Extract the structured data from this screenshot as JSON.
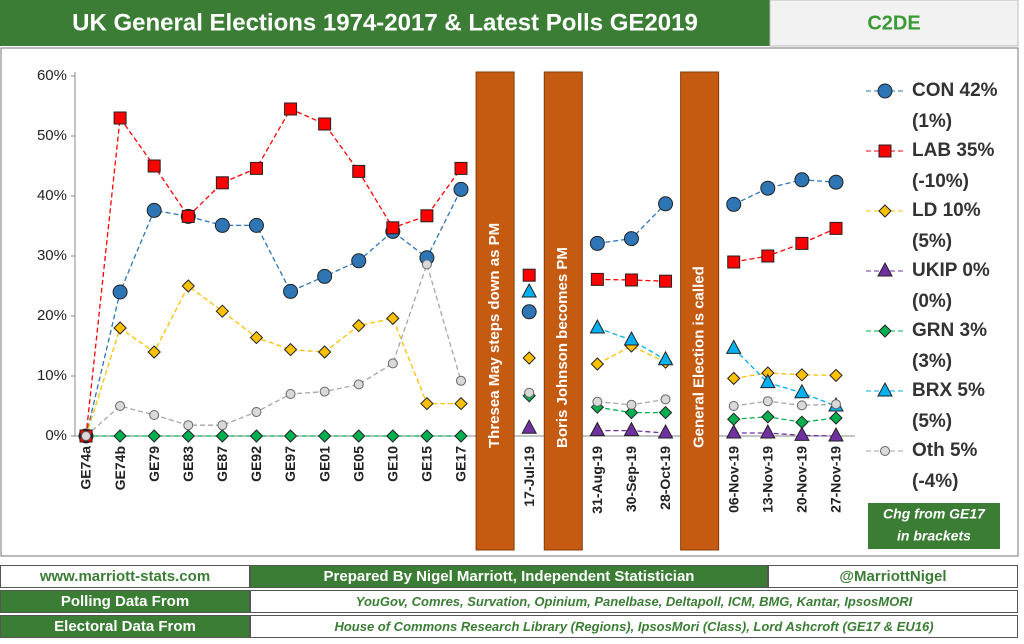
{
  "chart_data": {
    "type": "line",
    "title": "UK General Elections 1974-2017 & Latest Polls GE2019",
    "subtitle": "C2DE",
    "categories": [
      "GE74a",
      "GE74b",
      "GE79",
      "GE83",
      "GE87",
      "GE92",
      "GE97",
      "GE01",
      "GE05",
      "GE10",
      "GE15",
      "GE17",
      null,
      "17-Jul-19",
      null,
      "31-Aug-19",
      "30-Sep-19",
      "28-Oct-19",
      null,
      "06-Nov-19",
      "13-Nov-19",
      "20-Nov-19",
      "27-Nov-19"
    ],
    "annotations": [
      "Thresea May steps down as PM",
      "Boris Johnson becomes PM",
      "General Election is called"
    ],
    "annotation_color": "#c55a11",
    "ylim": [
      0,
      60
    ],
    "yticks": [
      {
        "value": 0,
        "label": "0%"
      },
      {
        "value": 10,
        "label": "10%"
      },
      {
        "value": 20,
        "label": "20%"
      },
      {
        "value": 30,
        "label": "30%"
      },
      {
        "value": 40,
        "label": "40%"
      },
      {
        "value": 50,
        "label": "50%"
      },
      {
        "value": 60,
        "label": "60%"
      }
    ],
    "grid": false,
    "legend": "right",
    "series": [
      {
        "name": "CON 42%",
        "legend_note": "(1%)",
        "color": "#2e75b6",
        "line_color": "#2e75b6",
        "marker": "circle",
        "values": [
          0,
          24,
          37.6,
          36.6,
          35.1,
          35.1,
          24.1,
          26.6,
          29.2,
          34.1,
          29.7,
          41.1,
          null,
          20.7,
          null,
          32.1,
          32.9,
          38.7,
          null,
          38.6,
          41.3,
          42.7,
          42.3
        ]
      },
      {
        "name": "LAB 35%",
        "legend_note": "(-10%)",
        "color": "#ff0000",
        "line_color": "#ff0000",
        "marker": "square",
        "values": [
          0,
          53,
          45,
          36.6,
          42.2,
          44.6,
          54.5,
          52,
          44.1,
          34.7,
          36.7,
          44.6,
          null,
          26.8,
          null,
          26.1,
          26,
          25.8,
          null,
          29,
          30,
          32.1,
          34.6
        ]
      },
      {
        "name": "LD 10%",
        "legend_note": "(5%)",
        "color": "#ffc000",
        "line_color": "#ffc000",
        "marker": "diamond",
        "values": [
          0,
          18,
          14,
          25,
          20.8,
          16.4,
          14.4,
          14,
          18.4,
          19.6,
          5.4,
          5.4,
          null,
          13,
          null,
          12,
          15,
          12.3,
          null,
          9.6,
          10.5,
          10.2,
          10.1
        ]
      },
      {
        "name": "UKIP 0%",
        "legend_note": "(0%)",
        "color": "#7030a0",
        "line_color": "#7030a0",
        "marker": "triangle",
        "values": [
          null,
          null,
          null,
          null,
          null,
          null,
          null,
          null,
          null,
          null,
          null,
          null,
          null,
          1.3,
          null,
          0.9,
          0.9,
          0.5,
          null,
          0.5,
          0.5,
          0.1,
          0
        ]
      },
      {
        "name": "GRN 3%",
        "legend_note": "(3%)",
        "color": "#00b050",
        "line_color": "#00b050",
        "marker": "diamond",
        "values": [
          0,
          0,
          0,
          0,
          0,
          0,
          0,
          0,
          0,
          0,
          0,
          0,
          null,
          6.7,
          null,
          4.8,
          3.9,
          3.9,
          null,
          2.8,
          3.2,
          2.3,
          3
        ]
      },
      {
        "name": "BRX 5%",
        "legend_note": "(5%)",
        "color": "#00b0f0",
        "line_color": "#00b0f0",
        "marker": "triangle",
        "values": [
          null,
          null,
          null,
          null,
          null,
          null,
          null,
          null,
          null,
          null,
          null,
          null,
          null,
          24,
          null,
          18,
          16,
          12.7,
          null,
          14.6,
          8.9,
          7.2,
          5
        ]
      },
      {
        "name": "Oth 5%",
        "legend_note": "(-4%)",
        "color": "#d9d9d9",
        "line_color": "#a6a6a6",
        "marker": "small-circle",
        "values": [
          0,
          5,
          3.5,
          1.8,
          1.8,
          4,
          7,
          7.4,
          8.6,
          12.1,
          28.6,
          9.2,
          null,
          7.2,
          null,
          5.7,
          5.2,
          6.1,
          null,
          5,
          5.8,
          5.1,
          5.3
        ]
      }
    ],
    "note": [
      "Chg from GE17",
      "in brackets"
    ]
  },
  "footer": {
    "website": "www.marriott-stats.com",
    "prepared_by": "Prepared By Nigel Marriott, Independent Statistician",
    "handle": "@MarriottNigel",
    "rows": [
      [
        "Polling Data From",
        "YouGov, Comres, Survation, Opinium, Panelbase, Deltapoll, ICM, BMG, Kantar, IpsosMORI"
      ],
      [
        "Electoral Data From",
        "House of Commons Research Library (Regions), IpsosMori (Class), Lord Ashcroft (GE17 & EU16)"
      ]
    ]
  }
}
